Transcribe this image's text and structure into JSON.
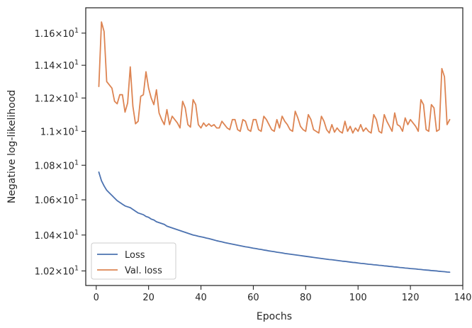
{
  "chart_data": {
    "type": "line",
    "xlabel": "Epochs",
    "ylabel": "Negative log-likelihood",
    "xlim": [
      -4,
      140
    ],
    "ylim": [
      10.12,
      11.76
    ],
    "y_scale": "log",
    "x_ticks": [
      0,
      20,
      40,
      60,
      80,
      100,
      120,
      140
    ],
    "x_tick_labels": [
      "0",
      "20",
      "40",
      "60",
      "80",
      "100",
      "120",
      "140"
    ],
    "y_ticks": [
      10.2,
      10.4,
      10.6,
      10.8,
      11.0,
      11.2,
      11.4,
      11.6
    ],
    "y_tick_labels": [
      {
        "mantissa": "1.02",
        "times": "×",
        "base": "10",
        "exp": "1"
      },
      {
        "mantissa": "1.04",
        "times": "×",
        "base": "10",
        "exp": "1"
      },
      {
        "mantissa": "1.06",
        "times": "×",
        "base": "10",
        "exp": "1"
      },
      {
        "mantissa": "1.08",
        "times": "×",
        "base": "10",
        "exp": "1"
      },
      {
        "mantissa": "1.1",
        "times": "×",
        "base": "10",
        "exp": "1"
      },
      {
        "mantissa": "1.12",
        "times": "×",
        "base": "10",
        "exp": "1"
      },
      {
        "mantissa": "1.14",
        "times": "×",
        "base": "10",
        "exp": "1"
      },
      {
        "mantissa": "1.16",
        "times": "×",
        "base": "10",
        "exp": "1"
      }
    ],
    "grid": false,
    "legend_position": "lower-left",
    "series": [
      {
        "name": "Loss",
        "color": "#4c72b0",
        "x": [
          1,
          2,
          3,
          4,
          5,
          6,
          7,
          8,
          9,
          10,
          11,
          12,
          13,
          14,
          15,
          16,
          17,
          18,
          19,
          20,
          21,
          22,
          23,
          24,
          25,
          26,
          27,
          28,
          29,
          30,
          31,
          32,
          33,
          34,
          35,
          36,
          37,
          38,
          39,
          40,
          41,
          42,
          43,
          44,
          45,
          46,
          47,
          48,
          49,
          50,
          51,
          52,
          53,
          54,
          55,
          56,
          57,
          58,
          59,
          60,
          61,
          62,
          63,
          64,
          65,
          66,
          67,
          68,
          69,
          70,
          71,
          72,
          73,
          74,
          75,
          76,
          77,
          78,
          79,
          80,
          81,
          82,
          83,
          84,
          85,
          86,
          87,
          88,
          89,
          90,
          91,
          92,
          93,
          94,
          95,
          96,
          97,
          98,
          99,
          100,
          101,
          102,
          103,
          104,
          105,
          106,
          107,
          108,
          109,
          110,
          111,
          112,
          113,
          114,
          115,
          116,
          117,
          118,
          119,
          120,
          121,
          122,
          123,
          124,
          125,
          126,
          127,
          128,
          129,
          130,
          131,
          132,
          133,
          134,
          135
        ],
        "y": [
          10.76,
          10.71,
          10.68,
          10.655,
          10.64,
          10.625,
          10.61,
          10.595,
          10.585,
          10.575,
          10.565,
          10.56,
          10.555,
          10.545,
          10.535,
          10.525,
          10.52,
          10.515,
          10.505,
          10.5,
          10.49,
          10.485,
          10.475,
          10.47,
          10.465,
          10.46,
          10.45,
          10.445,
          10.44,
          10.435,
          10.43,
          10.425,
          10.42,
          10.415,
          10.41,
          10.405,
          10.4,
          10.397,
          10.393,
          10.39,
          10.387,
          10.383,
          10.38,
          10.376,
          10.372,
          10.368,
          10.365,
          10.362,
          10.358,
          10.355,
          10.352,
          10.349,
          10.346,
          10.343,
          10.34,
          10.337,
          10.334,
          10.332,
          10.329,
          10.326,
          10.324,
          10.321,
          10.319,
          10.316,
          10.314,
          10.311,
          10.309,
          10.307,
          10.304,
          10.302,
          10.3,
          10.297,
          10.295,
          10.293,
          10.291,
          10.289,
          10.287,
          10.285,
          10.283,
          10.281,
          10.279,
          10.277,
          10.275,
          10.273,
          10.271,
          10.269,
          10.267,
          10.265,
          10.263,
          10.262,
          10.26,
          10.258,
          10.256,
          10.254,
          10.253,
          10.251,
          10.249,
          10.247,
          10.246,
          10.244,
          10.242,
          10.241,
          10.239,
          10.237,
          10.236,
          10.234,
          10.233,
          10.231,
          10.23,
          10.228,
          10.227,
          10.225,
          10.224,
          10.222,
          10.221,
          10.219,
          10.218,
          10.216,
          10.215,
          10.213,
          10.212,
          10.211,
          10.209,
          10.208,
          10.206,
          10.205,
          10.204,
          10.202,
          10.201,
          10.2,
          10.198,
          10.197,
          10.196,
          10.194,
          10.193
        ]
      },
      {
        "name": "Val. loss",
        "color": "#dd8452",
        "x": [
          1,
          2,
          3,
          4,
          5,
          6,
          7,
          8,
          9,
          10,
          11,
          12,
          13,
          14,
          15,
          16,
          17,
          18,
          19,
          20,
          21,
          22,
          23,
          24,
          25,
          26,
          27,
          28,
          29,
          30,
          31,
          32,
          33,
          34,
          35,
          36,
          37,
          38,
          39,
          40,
          41,
          42,
          43,
          44,
          45,
          46,
          47,
          48,
          49,
          50,
          51,
          52,
          53,
          54,
          55,
          56,
          57,
          58,
          59,
          60,
          61,
          62,
          63,
          64,
          65,
          66,
          67,
          68,
          69,
          70,
          71,
          72,
          73,
          74,
          75,
          76,
          77,
          78,
          79,
          80,
          81,
          82,
          83,
          84,
          85,
          86,
          87,
          88,
          89,
          90,
          91,
          92,
          93,
          94,
          95,
          96,
          97,
          98,
          99,
          100,
          101,
          102,
          103,
          104,
          105,
          106,
          107,
          108,
          109,
          110,
          111,
          112,
          113,
          114,
          115,
          116,
          117,
          118,
          119,
          120,
          121,
          122,
          123,
          124,
          125,
          126,
          127,
          128,
          129,
          130,
          131,
          132,
          133,
          134,
          135
        ],
        "y": [
          11.27,
          11.67,
          11.61,
          11.3,
          11.28,
          11.26,
          11.18,
          11.165,
          11.22,
          11.22,
          11.115,
          11.17,
          11.39,
          11.15,
          11.045,
          11.06,
          11.21,
          11.22,
          11.36,
          11.26,
          11.2,
          11.16,
          11.25,
          11.11,
          11.07,
          11.04,
          11.13,
          11.04,
          11.09,
          11.07,
          11.05,
          11.02,
          11.18,
          11.14,
          11.04,
          11.025,
          11.19,
          11.16,
          11.04,
          11.02,
          11.05,
          11.03,
          11.045,
          11.03,
          11.04,
          11.02,
          11.02,
          11.06,
          11.04,
          11.02,
          11.01,
          11.07,
          11.07,
          11.01,
          11.0,
          11.07,
          11.06,
          11.01,
          11.0,
          11.07,
          11.07,
          11.01,
          11.0,
          11.09,
          11.07,
          11.04,
          11.01,
          11.0,
          11.07,
          11.02,
          11.09,
          11.06,
          11.04,
          11.01,
          11.0,
          11.12,
          11.08,
          11.03,
          11.01,
          11.0,
          11.1,
          11.07,
          11.01,
          11.0,
          10.99,
          11.09,
          11.06,
          11.01,
          10.99,
          11.04,
          10.995,
          11.02,
          11.0,
          10.99,
          11.06,
          11.0,
          11.03,
          10.99,
          11.02,
          11.0,
          11.04,
          11.0,
          11.02,
          11.0,
          10.99,
          11.1,
          11.07,
          11.0,
          10.99,
          11.1,
          11.06,
          11.03,
          11.0,
          11.11,
          11.04,
          11.03,
          11.0,
          11.08,
          11.04,
          11.07,
          11.05,
          11.03,
          11.0,
          11.19,
          11.16,
          11.01,
          11.0,
          11.16,
          11.14,
          11.0,
          11.01,
          11.38,
          11.33,
          11.04,
          11.07
        ]
      }
    ]
  }
}
